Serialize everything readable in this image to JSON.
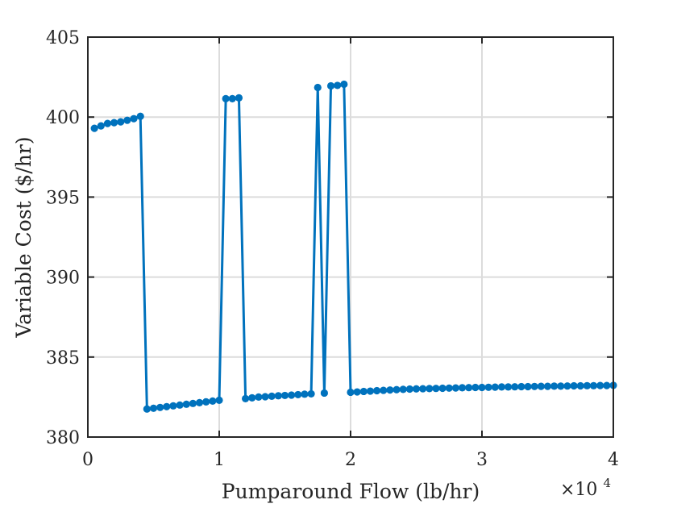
{
  "chart_data": {
    "type": "line",
    "xlabel": "Pumparound Flow (lb/hr)",
    "ylabel": "Variable Cost ($/hr)",
    "x_multiplier": {
      "base": "×10",
      "exponent": "4"
    },
    "xlim": [
      0,
      40000
    ],
    "ylim": [
      380,
      405
    ],
    "x_ticks": [
      0,
      10000,
      20000,
      30000,
      40000
    ],
    "x_tick_labels": [
      "0",
      "1",
      "2",
      "3",
      "4"
    ],
    "y_ticks": [
      380,
      385,
      390,
      395,
      400,
      405
    ],
    "y_tick_labels": [
      "380",
      "385",
      "390",
      "395",
      "400",
      "405"
    ],
    "grid": true,
    "series_color": "#0072BD",
    "series": [
      {
        "x": [
          500,
          1000,
          1500,
          2000,
          2500,
          3000,
          3500,
          4000,
          4500,
          5000,
          5500,
          6000,
          6500,
          7000,
          7500,
          8000,
          8500,
          9000,
          9500,
          10000,
          10500,
          11000,
          11500,
          12000,
          12500,
          13000,
          13500,
          14000,
          14500,
          15000,
          15500,
          16000,
          16500,
          17000,
          17500,
          18000,
          18500,
          19000,
          19500,
          20000,
          20500,
          21000,
          21500,
          22000,
          22500,
          23000,
          23500,
          24000,
          24500,
          25000,
          25500,
          26000,
          26500,
          27000,
          27500,
          28000,
          28500,
          29000,
          29500,
          30000,
          30500,
          31000,
          31500,
          32000,
          32500,
          33000,
          33500,
          34000,
          34500,
          35000,
          35500,
          36000,
          36500,
          37000,
          37500,
          38000,
          38500,
          39000,
          39500,
          40000
        ],
        "y": [
          399.3,
          399.45,
          399.6,
          399.65,
          399.7,
          399.8,
          399.9,
          400.05,
          381.75,
          381.8,
          381.85,
          381.9,
          381.95,
          382.0,
          382.05,
          382.1,
          382.15,
          382.2,
          382.25,
          382.3,
          401.15,
          401.15,
          401.2,
          382.4,
          382.45,
          382.5,
          382.52,
          382.55,
          382.58,
          382.6,
          382.62,
          382.65,
          382.68,
          382.7,
          401.85,
          382.75,
          401.95,
          401.98,
          402.05,
          382.8,
          382.82,
          382.85,
          382.87,
          382.9,
          382.92,
          382.94,
          382.96,
          382.98,
          383.0,
          383.01,
          383.02,
          383.03,
          383.04,
          383.05,
          383.06,
          383.07,
          383.08,
          383.09,
          383.1,
          383.1,
          383.11,
          383.12,
          383.13,
          383.13,
          383.14,
          383.15,
          383.15,
          383.16,
          383.17,
          383.17,
          383.18,
          383.18,
          383.19,
          383.2,
          383.2,
          383.21,
          383.21,
          383.22,
          383.22,
          383.23
        ]
      }
    ]
  }
}
